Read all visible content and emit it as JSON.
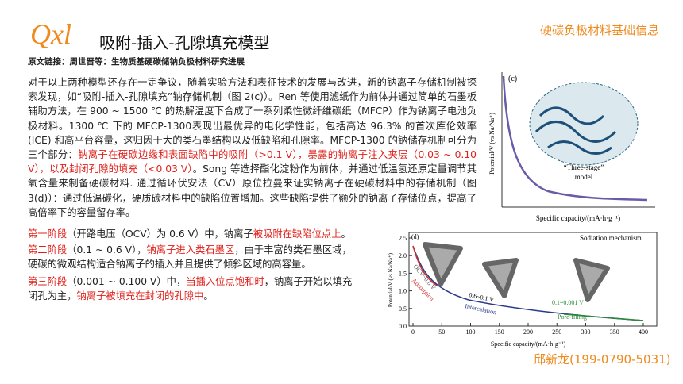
{
  "header": {
    "logo": "Qxl",
    "title": "吸附-插入-孔隙填充模型",
    "section": "硬碳负极材料基础信息",
    "source": "原文链接：周世晋等：生物质基硬碳储钠负极材料研究进展"
  },
  "body": {
    "paragraphs": [
      [
        {
          "text": "对于以上两种模型还存在一定争议，随着实验方法和表征技术的发展与改进，新的钠离子存储机制被探索发现，如“吸附-插入-孔隙填充”钠存储机制（图 2(c)）。Ren 等使用滤纸作为前体并通过简单的石墨板辅助方法，在 900 ~ 1500 ℃ 的热解温度下合成了一系列柔性微纤维碳纸（MFCP）作为钠离子电池负极材料。1300 ℃ 下的 MFCP-1300表现出最优异的电化学性能，包括高达 96.3% 的首次库伦效率 (ICE) 和高平台容量，这归因于大的类石墨结构以及低缺陷和孔隙率。MFCP-1300 的钠储存机制可分为三个部分：",
          "color": "#222"
        },
        {
          "text": "钠离子在硬碳边缘和表面缺陷中的吸附（>0.1 V），暴露的钠离子注入夹层（0.03 ~ 0.10 V），以及封闭孔隙的填充（<0.03 V）",
          "color": "#e0201b"
        },
        {
          "text": "。Song 等选择酯化淀粉作为前体，并通过低温氢还原定量调节其氧含量来制备硬碳材料. 通过循环伏安法（CV）原位拉曼来证实钠离子在硬碳材料中的存储机制（图 3(d)）：通过低温碳化，硬质碳材料中的缺陷位置增加。这些缺陷提供了额外的钠离子存储位点，提高了高倍率下的容量留存率。",
          "color": "#222"
        }
      ],
      [
        {
          "text": "第一阶段",
          "color": "#e0201b"
        },
        {
          "text": "（开路电压（OCV）为 0.6 V）中，钠离子",
          "color": "#222"
        },
        {
          "text": "被吸附在缺陷位点上",
          "color": "#e0201b"
        },
        {
          "text": "。",
          "color": "#222"
        }
      ],
      [
        {
          "text": "第二阶段",
          "color": "#e0201b"
        },
        {
          "text": "（0.1 ~ 0.6 V），",
          "color": "#222"
        },
        {
          "text": "钠离子进入类石墨区",
          "color": "#e0201b"
        },
        {
          "text": "，由于丰富的类石墨区域，硬碳的微观结构适合钠离子的插入并且提供了倾斜区域的高容量。",
          "color": "#222"
        }
      ],
      [
        {
          "text": "第三阶段",
          "color": "#e0201b"
        },
        {
          "text": "（0.001 ~ 0.100 V）中，",
          "color": "#222"
        },
        {
          "text": "当插入位点饱和时",
          "color": "#e0201b"
        },
        {
          "text": "，钠离子开始以填充闭孔为主，",
          "color": "#222"
        },
        {
          "text": "钠离子被填充在封闭的孔隙中",
          "color": "#e0201b"
        },
        {
          "text": "。",
          "color": "#222"
        }
      ]
    ]
  },
  "figure_c": {
    "label": "(c)",
    "ylabel": "Potential/V (vs Na/Na⁺)",
    "model_line1": "“Three-stage”",
    "model_line2": "model",
    "xlabel": "Specific capacity/(mA·h·g⁻¹)"
  },
  "figure_d": {
    "label": "(d)",
    "heading": "Sodiation mechanism",
    "ylabel": "Potential/V (vs Na/Na⁺)",
    "yticks": [
      "0.0",
      "0.5",
      "1.0",
      "1.5",
      "2.0",
      "2.5"
    ],
    "xticks": [
      "0",
      "50",
      "100",
      "150",
      "200",
      "250",
      "300",
      "350",
      "400"
    ],
    "stage1": "OCV~0.6 V",
    "stage1_name": "Adsorption",
    "stage2": "0.6~0.1 V",
    "stage2_name": "Intercalation",
    "stage3": "0.1~0.001 V",
    "stage3_name": "Pore-filling",
    "xlabel": "Specific capacity/(mA·h·g⁻¹)"
  },
  "footer": {
    "contact": "邱新龙(199-0790-5031)"
  }
}
